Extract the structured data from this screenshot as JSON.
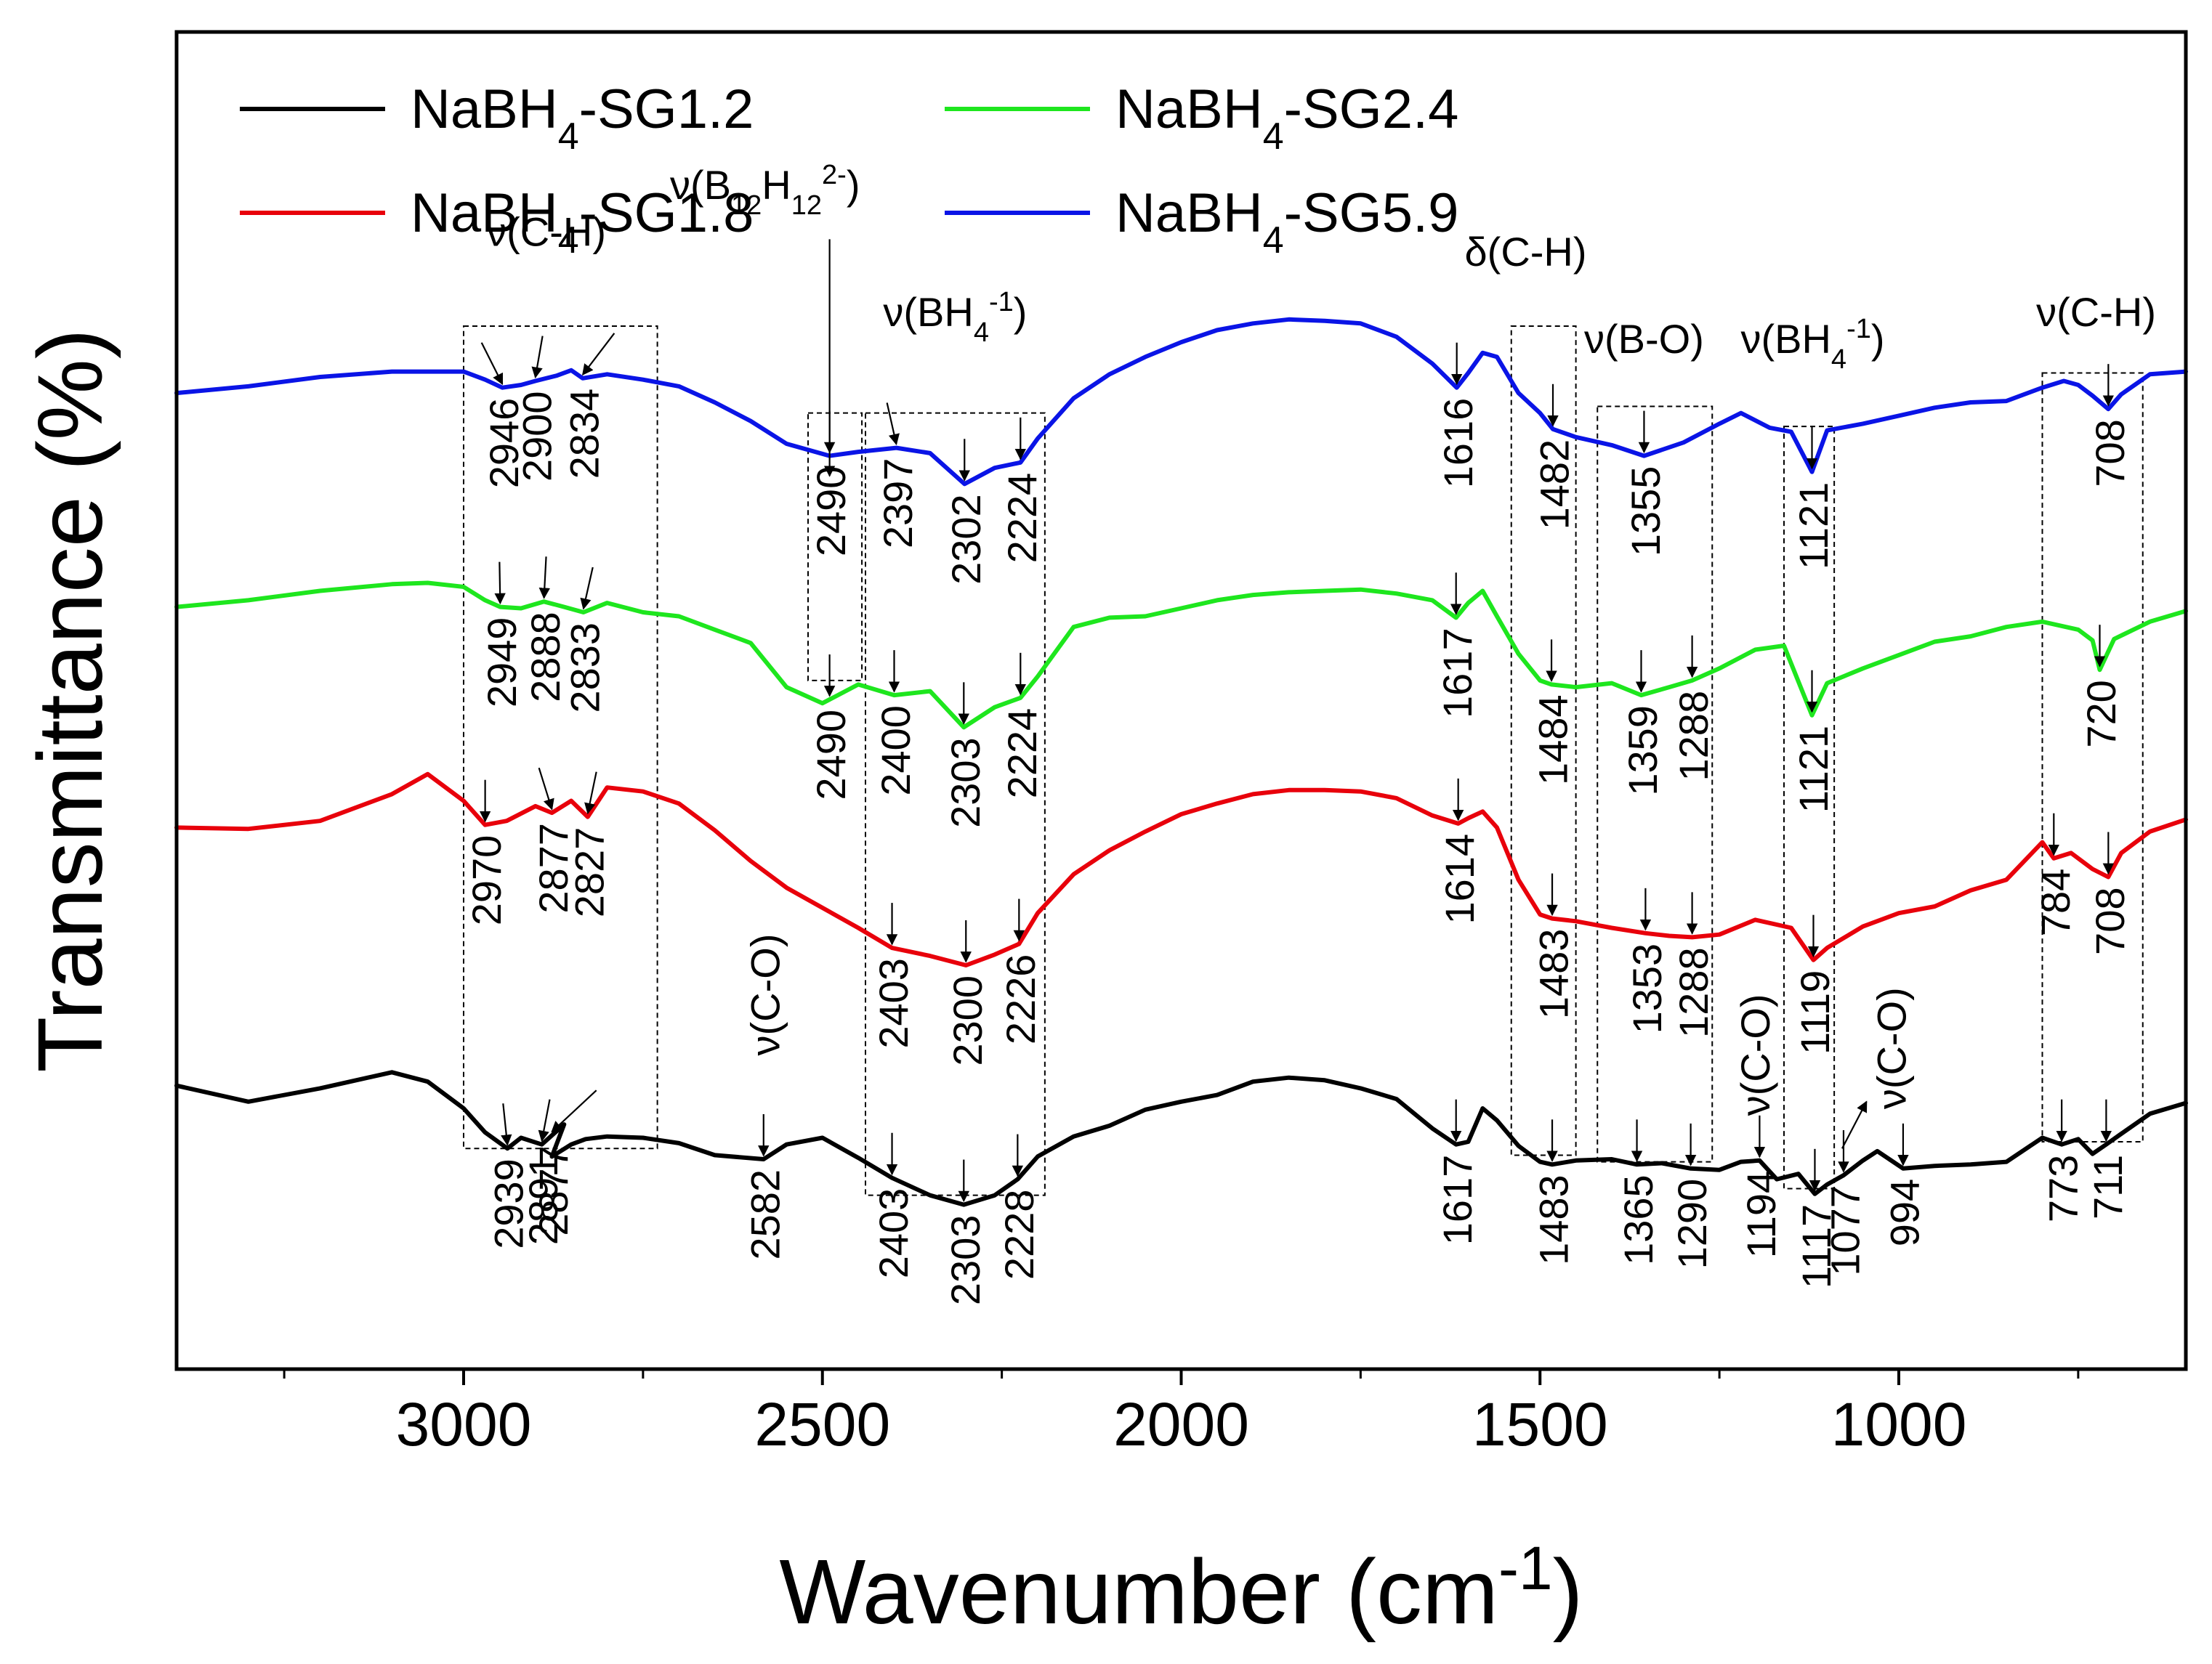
{
  "chart_data": {
    "type": "line",
    "title": "",
    "xlabel": "Wavenumber (cm",
    "xlabel_sup": "-1",
    "xlabel_tail": ")",
    "ylabel": "Transmittance (%)",
    "xlim": [
      3400,
      600
    ],
    "ylim": [
      0,
      100
    ],
    "x_ticks": [
      {
        "value": 3000,
        "label": "3000"
      },
      {
        "value": 2500,
        "label": "2500"
      },
      {
        "value": 2000,
        "label": "2000"
      },
      {
        "value": 1500,
        "label": "1500"
      },
      {
        "value": 1000,
        "label": "1000"
      }
    ],
    "minor_ticks": [
      3250,
      2750,
      2250,
      1750,
      1250,
      750
    ],
    "legend_position": "top-left",
    "series": [
      {
        "name": "NaBH4-SG1.2",
        "label_main": "NaBH",
        "label_sub": "4",
        "label_tail": "-SG1.2",
        "color": "#000000",
        "x": [
          3400,
          3300,
          3200,
          3100,
          3050,
          3000,
          2970,
          2939,
          2920,
          2891,
          2860,
          2877,
          2850,
          2830,
          2800,
          2750,
          2700,
          2650,
          2582,
          2550,
          2500,
          2450,
          2403,
          2350,
          2303,
          2260,
          2228,
          2200,
          2150,
          2100,
          2050,
          2000,
          1950,
          1900,
          1850,
          1800,
          1750,
          1700,
          1650,
          1617,
          1600,
          1580,
          1560,
          1530,
          1500,
          1483,
          1450,
          1400,
          1365,
          1330,
          1290,
          1250,
          1220,
          1194,
          1170,
          1140,
          1117,
          1100,
          1077,
          1050,
          1030,
          994,
          950,
          900,
          850,
          800,
          773,
          750,
          730,
          711,
          690,
          650,
          600
        ],
        "y": [
          21.2,
          20.0,
          21.0,
          22.2,
          21.5,
          19.5,
          17.7,
          16.5,
          17.3,
          16.8,
          18.3,
          15.9,
          16.8,
          17.2,
          17.4,
          17.3,
          16.9,
          16.0,
          15.7,
          16.8,
          17.3,
          15.8,
          14.3,
          13.0,
          12.3,
          13.0,
          14.2,
          15.9,
          17.4,
          18.2,
          19.4,
          20.0,
          20.5,
          21.5,
          21.8,
          21.6,
          21.0,
          20.2,
          18.0,
          16.8,
          17.0,
          19.5,
          18.6,
          16.7,
          15.5,
          15.3,
          15.6,
          15.7,
          15.3,
          15.4,
          15.0,
          14.9,
          15.5,
          15.6,
          14.2,
          14.6,
          13.1,
          13.8,
          14.5,
          15.6,
          16.3,
          15.0,
          15.2,
          15.3,
          15.5,
          17.3,
          16.8,
          17.2,
          16.1,
          16.8,
          17.6,
          19.1,
          19.9
        ]
      },
      {
        "name": "NaBH4-SG1.8",
        "label_main": "NaBH",
        "label_sub": "4",
        "label_tail": "-SG1.8",
        "color": "#e8000b",
        "x": [
          3400,
          3300,
          3200,
          3100,
          3050,
          3000,
          2970,
          2940,
          2900,
          2877,
          2850,
          2827,
          2800,
          2750,
          2700,
          2650,
          2600,
          2550,
          2500,
          2450,
          2403,
          2350,
          2300,
          2260,
          2226,
          2200,
          2150,
          2100,
          2050,
          2000,
          1950,
          1900,
          1850,
          1800,
          1750,
          1700,
          1650,
          1614,
          1600,
          1580,
          1560,
          1530,
          1500,
          1483,
          1450,
          1400,
          1353,
          1320,
          1288,
          1250,
          1200,
          1150,
          1119,
          1100,
          1050,
          1000,
          950,
          900,
          850,
          800,
          784,
          760,
          730,
          708,
          690,
          650,
          600
        ],
        "y": [
          40.5,
          40.4,
          41.0,
          43.0,
          44.5,
          42.5,
          40.7,
          41.0,
          42.1,
          41.6,
          42.5,
          41.3,
          43.5,
          43.2,
          42.3,
          40.3,
          38.0,
          36.0,
          34.5,
          33.0,
          31.5,
          30.9,
          30.2,
          31.0,
          31.8,
          34.1,
          37.0,
          38.8,
          40.2,
          41.5,
          42.3,
          43.0,
          43.3,
          43.3,
          43.2,
          42.7,
          41.4,
          40.8,
          41.2,
          41.7,
          40.5,
          36.6,
          34.0,
          33.7,
          33.5,
          33.0,
          32.6,
          32.4,
          32.3,
          32.5,
          33.6,
          33.0,
          30.6,
          31.5,
          33.1,
          34.1,
          34.6,
          35.8,
          36.6,
          39.4,
          38.2,
          38.6,
          37.4,
          36.8,
          38.6,
          40.2,
          41.1
        ]
      },
      {
        "name": "NaBH4-SG2.4",
        "label_main": "NaBH",
        "label_sub": "4",
        "label_tail": "-SG2.4",
        "color": "#1ee61e",
        "x": [
          3400,
          3300,
          3200,
          3100,
          3050,
          3000,
          2970,
          2949,
          2920,
          2888,
          2860,
          2833,
          2800,
          2750,
          2700,
          2650,
          2600,
          2550,
          2500,
          2450,
          2400,
          2350,
          2303,
          2260,
          2224,
          2200,
          2150,
          2100,
          2050,
          2000,
          1950,
          1900,
          1850,
          1800,
          1750,
          1700,
          1650,
          1617,
          1600,
          1580,
          1560,
          1530,
          1500,
          1484,
          1450,
          1400,
          1359,
          1320,
          1288,
          1250,
          1200,
          1160,
          1121,
          1100,
          1050,
          1000,
          950,
          900,
          850,
          800,
          750,
          730,
          720,
          700,
          650,
          600
        ],
        "y": [
          57.0,
          57.5,
          58.2,
          58.7,
          58.8,
          58.5,
          57.5,
          57.0,
          56.9,
          57.4,
          57.0,
          56.6,
          57.3,
          56.6,
          56.3,
          55.3,
          54.3,
          51.0,
          49.8,
          51.2,
          50.4,
          50.7,
          48.0,
          49.5,
          50.2,
          51.8,
          55.5,
          56.2,
          56.3,
          56.9,
          57.5,
          57.9,
          58.1,
          58.2,
          58.3,
          58.0,
          57.5,
          56.2,
          57.3,
          58.2,
          56.3,
          53.5,
          51.5,
          51.2,
          51.0,
          51.3,
          50.4,
          51.0,
          51.5,
          52.4,
          53.8,
          54.1,
          48.9,
          51.3,
          52.4,
          53.4,
          54.4,
          54.8,
          55.5,
          55.9,
          55.3,
          54.5,
          52.3,
          54.6,
          55.9,
          56.7
        ]
      },
      {
        "name": "NaBH4-SG5.9",
        "label_main": "NaBH",
        "label_sub": "4",
        "label_tail": "-SG5.9",
        "color": "#0a14e6",
        "x": [
          3400,
          3300,
          3200,
          3100,
          3050,
          3000,
          2970,
          2946,
          2920,
          2900,
          2870,
          2850,
          2834,
          2800,
          2750,
          2700,
          2650,
          2600,
          2550,
          2490,
          2450,
          2397,
          2350,
          2302,
          2260,
          2224,
          2200,
          2150,
          2100,
          2050,
          2000,
          1950,
          1900,
          1850,
          1800,
          1750,
          1700,
          1650,
          1616,
          1600,
          1580,
          1560,
          1530,
          1500,
          1482,
          1450,
          1400,
          1355,
          1300,
          1250,
          1220,
          1180,
          1150,
          1121,
          1100,
          1050,
          1000,
          950,
          900,
          850,
          800,
          770,
          750,
          730,
          708,
          690,
          650,
          600
        ],
        "y": [
          73.0,
          73.5,
          74.2,
          74.6,
          74.6,
          74.6,
          74.0,
          73.4,
          73.6,
          73.9,
          74.3,
          74.7,
          74.1,
          74.4,
          74.0,
          73.5,
          72.3,
          70.9,
          69.2,
          68.3,
          68.6,
          68.9,
          68.5,
          66.2,
          67.4,
          67.8,
          69.6,
          72.6,
          74.4,
          75.7,
          76.8,
          77.7,
          78.2,
          78.5,
          78.4,
          78.2,
          77.2,
          75.2,
          73.4,
          74.5,
          76.0,
          75.7,
          73.0,
          71.5,
          70.3,
          69.7,
          69.1,
          68.3,
          69.3,
          70.7,
          71.5,
          70.4,
          70.1,
          67.1,
          70.2,
          70.7,
          71.3,
          71.9,
          72.3,
          72.4,
          73.4,
          73.9,
          73.6,
          72.8,
          71.8,
          72.9,
          74.4,
          74.6
        ]
      }
    ],
    "annotations": [
      {
        "text": "ν(C-H)",
        "x": 2885,
        "y": 84.0
      },
      {
        "text": "ν(B12H12 2-)",
        "main": "ν(B",
        "sub1": "12",
        "mid": "H",
        "sub2": "12",
        "sup": "2-",
        "tail": ")",
        "x": 2580,
        "y": 87.5
      },
      {
        "text": "ν(BH4 -1)",
        "main": "ν(BH",
        "sub": "4",
        "sup": "-1",
        "tail": ")",
        "x": 2315,
        "y": 78.0
      },
      {
        "text": "δ(C-H)",
        "x": 1520,
        "y": 82.5
      },
      {
        "text": "ν(B-O)",
        "x": 1355,
        "y": 76.0
      },
      {
        "text": "ν(BH4 -1)",
        "main": "ν(BH",
        "sub": "4",
        "sup": "-1",
        "tail": ")",
        "x": 1120,
        "y": 76.0
      },
      {
        "text": "ν(C-H)",
        "x": 725,
        "y": 78.0
      }
    ],
    "vertical_annotations": [
      {
        "text": "ν(C-O)",
        "x": 2580,
        "y": 28.0
      },
      {
        "text": "ν(C-O)",
        "x": 1200,
        "y": 23.5
      },
      {
        "text": "ν(C-O)",
        "x": 1010,
        "y": 24.0
      }
    ],
    "peak_labels": [
      {
        "series": 3,
        "text": "2946",
        "value": 2946,
        "x": 2975
      },
      {
        "series": 3,
        "text": "2900",
        "value": 2900,
        "x": 2890
      },
      {
        "series": 3,
        "text": "2834",
        "value": 2834,
        "x": 2790
      },
      {
        "series": 3,
        "text": "2490",
        "value": 2490,
        "x": 2490
      },
      {
        "series": 3,
        "text": "2397",
        "value": 2397,
        "x": 2410
      },
      {
        "series": 3,
        "text": "2302",
        "value": 2302,
        "x": 2302
      },
      {
        "series": 3,
        "text": "2224",
        "value": 2224,
        "x": 2224
      },
      {
        "series": 3,
        "text": "1616",
        "value": 1616,
        "x": 1616
      },
      {
        "series": 3,
        "text": "1482",
        "value": 1482,
        "x": 1482
      },
      {
        "series": 3,
        "text": "1355",
        "value": 1355,
        "x": 1355
      },
      {
        "series": 3,
        "text": "1121",
        "value": 1121,
        "x": 1121
      },
      {
        "series": 3,
        "text": "708",
        "value": 708,
        "x": 708
      },
      {
        "series": 2,
        "text": "2949",
        "value": 2949,
        "x": 2950
      },
      {
        "series": 2,
        "text": "2888",
        "value": 2888,
        "x": 2885
      },
      {
        "series": 2,
        "text": "2833",
        "value": 2833,
        "x": 2820
      },
      {
        "series": 2,
        "text": "2490",
        "value": 2490,
        "x": 2490
      },
      {
        "series": 2,
        "text": "2400",
        "value": 2400,
        "x": 2400
      },
      {
        "series": 2,
        "text": "2303",
        "value": 2303,
        "x": 2303
      },
      {
        "series": 2,
        "text": "2224",
        "value": 2224,
        "x": 2224
      },
      {
        "series": 2,
        "text": "1617",
        "value": 1617,
        "x": 1617
      },
      {
        "series": 2,
        "text": "1484",
        "value": 1484,
        "x": 1484
      },
      {
        "series": 2,
        "text": "1359",
        "value": 1359,
        "x": 1359
      },
      {
        "series": 2,
        "text": "1288",
        "value": 1288,
        "x": 1288
      },
      {
        "series": 2,
        "text": "1121",
        "value": 1121,
        "x": 1121
      },
      {
        "series": 2,
        "text": "720",
        "value": 720,
        "x": 720
      },
      {
        "series": 1,
        "text": "2970",
        "value": 2970,
        "x": 2970
      },
      {
        "series": 1,
        "text": "2877",
        "value": 2877,
        "x": 2895
      },
      {
        "series": 1,
        "text": "2827",
        "value": 2827,
        "x": 2815
      },
      {
        "series": 1,
        "text": "2403",
        "value": 2403,
        "x": 2403
      },
      {
        "series": 1,
        "text": "2300",
        "value": 2300,
        "x": 2300
      },
      {
        "series": 1,
        "text": "2226",
        "value": 2226,
        "x": 2226
      },
      {
        "series": 1,
        "text": "1614",
        "value": 1614,
        "x": 1614
      },
      {
        "series": 1,
        "text": "1483",
        "value": 1483,
        "x": 1483
      },
      {
        "series": 1,
        "text": "1353",
        "value": 1353,
        "x": 1353
      },
      {
        "series": 1,
        "text": "1288",
        "value": 1288,
        "x": 1288
      },
      {
        "series": 1,
        "text": "1119",
        "value": 1119,
        "x": 1119
      },
      {
        "series": 1,
        "text": "784",
        "value": 784,
        "x": 784
      },
      {
        "series": 1,
        "text": "708",
        "value": 708,
        "x": 708
      },
      {
        "series": 0,
        "text": "2939",
        "value": 2939,
        "x": 2945
      },
      {
        "series": 0,
        "text": "2891",
        "value": 2891,
        "x": 2880
      },
      {
        "series": 0,
        "text": "2877",
        "value": 2877,
        "x": 2815
      },
      {
        "series": 0,
        "text": "2582",
        "value": 2582,
        "x": 2582
      },
      {
        "series": 0,
        "text": "2403",
        "value": 2403,
        "x": 2403
      },
      {
        "series": 0,
        "text": "2303",
        "value": 2303,
        "x": 2303
      },
      {
        "series": 0,
        "text": "2228",
        "value": 2228,
        "x": 2228
      },
      {
        "series": 0,
        "text": "1617",
        "value": 1617,
        "x": 1617
      },
      {
        "series": 0,
        "text": "1483",
        "value": 1483,
        "x": 1483
      },
      {
        "series": 0,
        "text": "1365",
        "value": 1365,
        "x": 1365
      },
      {
        "series": 0,
        "text": "1290",
        "value": 1290,
        "x": 1290
      },
      {
        "series": 0,
        "text": "1194",
        "value": 1194,
        "x": 1194
      },
      {
        "series": 0,
        "text": "1117",
        "value": 1117,
        "x": 1117
      },
      {
        "series": 0,
        "text": "1077",
        "value": 1077,
        "x": 1077
      },
      {
        "series": 0,
        "text": "994",
        "value": 994,
        "x": 994
      },
      {
        "series": 0,
        "text": "773",
        "value": 773,
        "x": 773
      },
      {
        "series": 0,
        "text": "711",
        "value": 711,
        "x": 711
      }
    ],
    "boxes": [
      {
        "name": "ch-stretch-region",
        "x1": 3000,
        "x2": 2730,
        "y1": 16.5,
        "y2": 78.0
      },
      {
        "name": "b12h12-region",
        "x1": 2520,
        "x2": 2445,
        "y1": 51.5,
        "y2": 71.5
      },
      {
        "name": "bh4-region-high",
        "x1": 2440,
        "x2": 2190,
        "y1": 13.0,
        "y2": 71.5
      },
      {
        "name": "ch-bend-region",
        "x1": 1540,
        "x2": 1450,
        "y1": 16.0,
        "y2": 78.0
      },
      {
        "name": "bo-region",
        "x1": 1420,
        "x2": 1260,
        "y1": 15.5,
        "y2": 72.0
      },
      {
        "name": "bh4-region-low",
        "x1": 1160,
        "x2": 1090,
        "y1": 13.5,
        "y2": 70.5
      },
      {
        "name": "ch-low-region",
        "x1": 800,
        "x2": 660,
        "y1": 17.0,
        "y2": 74.5
      }
    ]
  }
}
